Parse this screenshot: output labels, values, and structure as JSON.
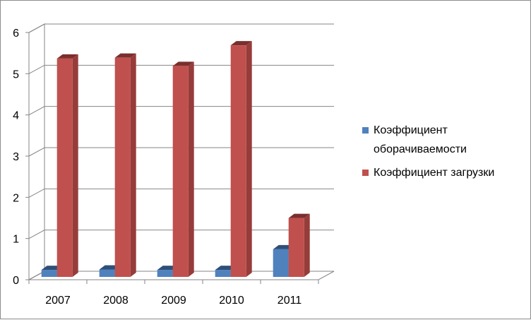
{
  "chart_data": {
    "type": "bar",
    "categories": [
      "2007",
      "2008",
      "2009",
      "2010",
      "2011"
    ],
    "series": [
      {
        "name": "Коэффициент оборачиваемости",
        "values": [
          0.17,
          0.18,
          0.17,
          0.17,
          0.67
        ],
        "color": "#4f81bd"
      },
      {
        "name": "Коэффициент загрузки",
        "values": [
          5.3,
          5.32,
          5.12,
          5.62,
          1.43
        ],
        "color": "#c0504d"
      }
    ],
    "yticks": [
      "0",
      "1",
      "2",
      "3",
      "4",
      "5",
      "6"
    ],
    "ylim": [
      0,
      6
    ],
    "grid": true,
    "legend_position": "right",
    "style": "3d-column"
  },
  "legend": {
    "items": [
      {
        "line1": "Коэффициент",
        "line2": "оборачиваемости"
      },
      {
        "line1": "Коэффициент  загрузки",
        "line2": ""
      }
    ]
  }
}
